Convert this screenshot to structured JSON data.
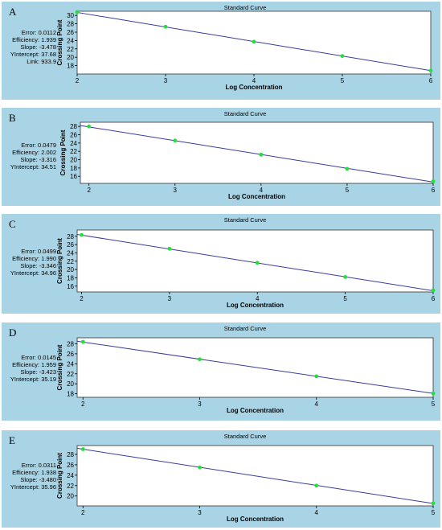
{
  "colors": {
    "panel_bg": "#a9d4e6",
    "plot_bg": "#ffffff",
    "line": "#3a3a9a",
    "point": "#22e03a"
  },
  "panels": [
    {
      "letter": "A",
      "title": "Standard Curve",
      "stats": [
        "Error: 0.0112",
        "Efficiency: 1.939",
        "Slope: -3.478",
        "YIntercept: 37.68",
        "Link: 933.9"
      ]
    },
    {
      "letter": "B",
      "title": "Standard Curve",
      "stats": [
        "Error: 0.0479",
        "Efficiency: 2.002",
        "Slope: -3.316",
        "YIntercept: 34.51"
      ]
    },
    {
      "letter": "C",
      "title": "Standard Curve",
      "stats": [
        "Error: 0.0499",
        "Efficiency: 1.990",
        "Slope: -3.346",
        "YIntercept: 34.96"
      ]
    },
    {
      "letter": "D",
      "title": "Standard Curve",
      "stats": [
        "Error: 0.0145",
        "Efficiency: 1.959",
        "Slope: -3.423",
        "YIntercept: 35.19"
      ]
    },
    {
      "letter": "E",
      "title": "Standard Curve",
      "stats": [
        "Error: 0.0311",
        "Efficiency: 1.938",
        "Slope: -3.480",
        "YIntercept: 35.96"
      ]
    }
  ],
  "chart_data": [
    {
      "type": "scatter",
      "title": "Standard Curve",
      "xlabel": "Log Concentration",
      "ylabel": "Crossing Point",
      "xlim": [
        2,
        6
      ],
      "ylim": [
        16,
        31
      ],
      "xticks": [
        2,
        3,
        4,
        5,
        6
      ],
      "yticks": [
        18,
        20,
        22,
        24,
        26,
        28,
        30
      ],
      "points": [
        [
          2,
          30.8
        ],
        [
          3,
          27.3
        ],
        [
          4,
          23.7
        ],
        [
          5,
          20.3
        ],
        [
          6,
          16.8
        ]
      ],
      "fit_line": {
        "slope": -3.478,
        "intercept": 37.68
      }
    },
    {
      "type": "scatter",
      "title": "Standard Curve",
      "xlabel": "Log Concentration",
      "ylabel": "Crossing Point",
      "xlim": [
        1.9,
        6
      ],
      "ylim": [
        14.3,
        29
      ],
      "xticks": [
        2,
        3,
        4,
        5,
        6
      ],
      "yticks": [
        16,
        18,
        20,
        22,
        24,
        26,
        28
      ],
      "points": [
        [
          2,
          28.0
        ],
        [
          3,
          24.6
        ],
        [
          4,
          21.2
        ],
        [
          5,
          17.8
        ],
        [
          6,
          14.8
        ]
      ],
      "fit_line": {
        "slope": -3.316,
        "intercept": 34.51
      }
    },
    {
      "type": "scatter",
      "title": "Standard Curve",
      "xlabel": "Log Concentration",
      "ylabel": "Crossing Point",
      "xlim": [
        1.95,
        6
      ],
      "ylim": [
        14.6,
        29.5
      ],
      "xticks": [
        2,
        3,
        4,
        5,
        6
      ],
      "yticks": [
        16,
        18,
        20,
        22,
        24,
        26,
        28
      ],
      "points": [
        [
          2,
          28.3
        ],
        [
          3,
          25.0
        ],
        [
          4,
          21.6
        ],
        [
          5,
          18.2
        ],
        [
          6,
          15.0
        ]
      ],
      "fit_line": {
        "slope": -3.346,
        "intercept": 34.96
      }
    },
    {
      "type": "scatter",
      "title": "Standard Curve",
      "xlabel": "Log Concentration",
      "ylabel": "Crossing Point",
      "xlim": [
        1.95,
        5
      ],
      "ylim": [
        17.3,
        29.2
      ],
      "xticks": [
        2,
        3,
        4,
        5
      ],
      "yticks": [
        18,
        20,
        22,
        24,
        26,
        28
      ],
      "points": [
        [
          2,
          28.4
        ],
        [
          3,
          24.9
        ],
        [
          4,
          21.5
        ],
        [
          5,
          18.1
        ]
      ],
      "fit_line": {
        "slope": -3.423,
        "intercept": 35.19
      }
    },
    {
      "type": "scatter",
      "title": "Standard Curve",
      "xlabel": "Log Concentration",
      "ylabel": "Crossing Point",
      "xlim": [
        1.95,
        5
      ],
      "ylim": [
        18.1,
        29.7
      ],
      "xticks": [
        2,
        3,
        4,
        5
      ],
      "yticks": [
        20,
        22,
        24,
        26,
        28
      ],
      "points": [
        [
          2,
          29.0
        ],
        [
          3,
          25.5
        ],
        [
          4,
          22.0
        ],
        [
          5,
          18.6
        ]
      ],
      "fit_line": {
        "slope": -3.48,
        "intercept": 35.96
      }
    }
  ]
}
